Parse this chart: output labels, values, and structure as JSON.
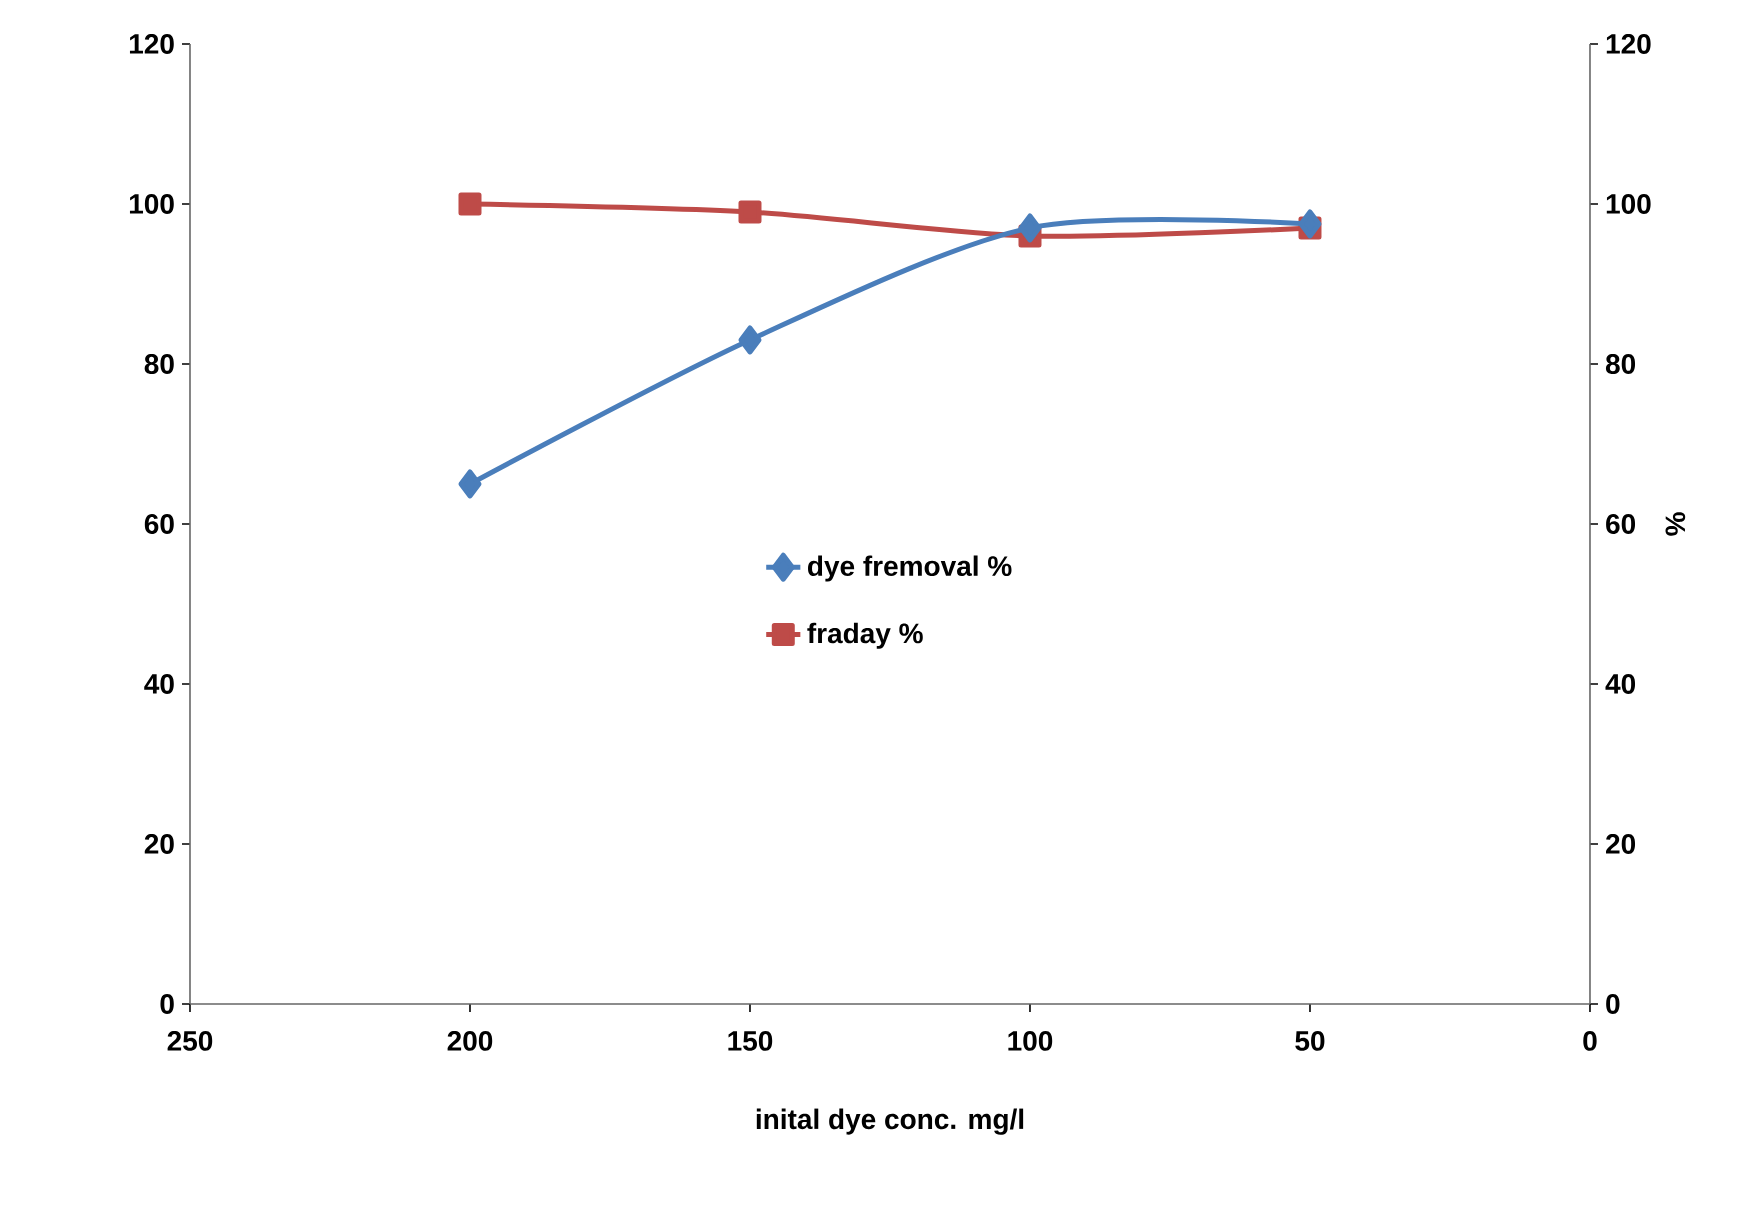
{
  "chart_data": {
    "type": "line",
    "xlabel": "inital dye conc. mg/l",
    "y2label": "%",
    "x": [
      200,
      150,
      100,
      50
    ],
    "xlim": [
      250,
      0
    ],
    "xticks": [
      250,
      200,
      150,
      100,
      50,
      0
    ],
    "ylim": [
      0,
      120
    ],
    "yticks": [
      0,
      20,
      40,
      60,
      80,
      100,
      120
    ],
    "y2lim": [
      0,
      120
    ],
    "y2ticks": [
      0,
      20,
      40,
      60,
      80,
      100,
      120
    ],
    "legend": "center",
    "line_style": "solid",
    "series": [
      {
        "name": "dye fremoval %",
        "color": "#4a7ebb",
        "marker": "diamond",
        "values": [
          65,
          83,
          97,
          97.5
        ]
      },
      {
        "name": "fraday %",
        "color": "#be4b48",
        "marker": "square",
        "axis": "y2",
        "values": [
          100,
          99,
          96,
          97
        ]
      }
    ]
  }
}
